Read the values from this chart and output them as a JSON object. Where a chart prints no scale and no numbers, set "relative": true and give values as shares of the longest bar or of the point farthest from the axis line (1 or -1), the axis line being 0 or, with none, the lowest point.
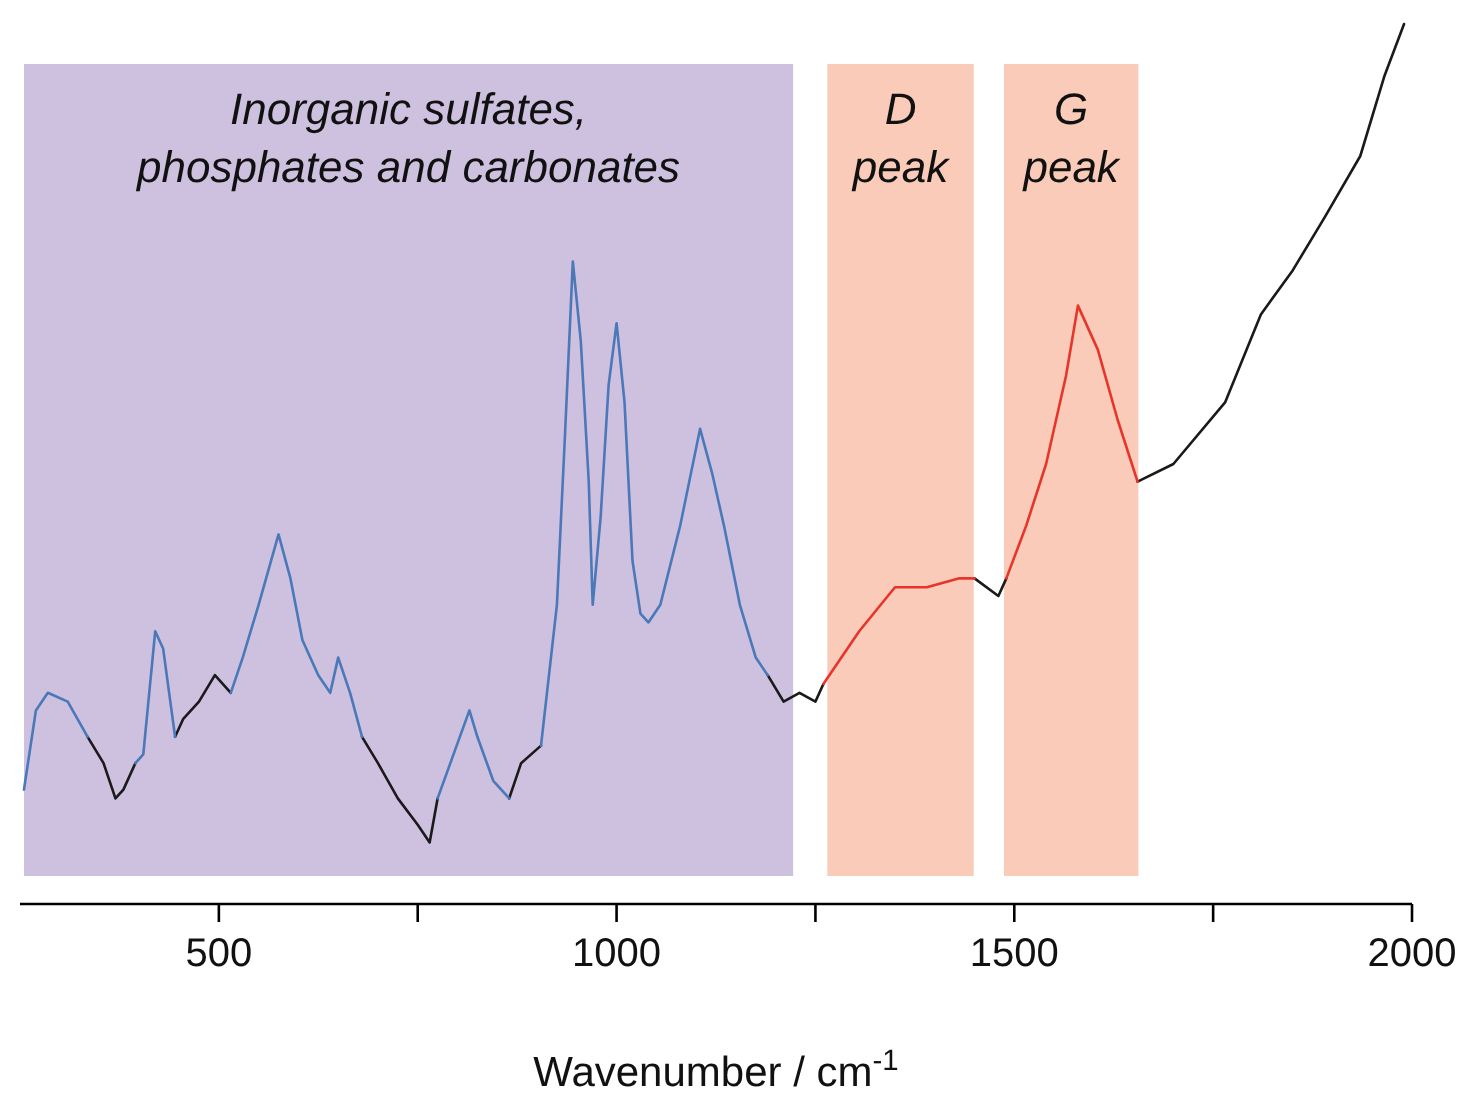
{
  "chart_data": {
    "type": "line",
    "relative": true,
    "xlabel": "Wavenumber / cm$^{-1}$",
    "xlim": [
      250,
      2000
    ],
    "xticks": [
      500,
      {
        "value": 750,
        "label": null
      },
      1000,
      {
        "value": 1250,
        "label": null
      },
      1500,
      {
        "value": 1750,
        "label": null
      },
      2000
    ],
    "bands": [
      {
        "axis": "x",
        "from": 255,
        "to": 1222,
        "label": "Inorganic sulfates, phosphates and carbonates",
        "color": "#cdc1df"
      },
      {
        "axis": "x",
        "from": 1265,
        "to": 1449,
        "label": "D peak",
        "color": "#f9cbb8"
      },
      {
        "axis": "x",
        "from": 1487,
        "to": 1656,
        "label": "G peak",
        "color": "#f9cbb8"
      }
    ],
    "x": [
      255,
      270,
      285,
      310,
      335,
      355,
      370,
      380,
      395,
      405,
      420,
      430,
      445,
      455,
      475,
      495,
      515,
      530,
      550,
      575,
      590,
      605,
      625,
      640,
      650,
      665,
      680,
      700,
      725,
      750,
      765,
      775,
      795,
      815,
      825,
      845,
      865,
      880,
      905,
      925,
      935,
      945,
      955,
      965,
      970,
      980,
      990,
      1000,
      1010,
      1020,
      1030,
      1040,
      1055,
      1080,
      1105,
      1120,
      1135,
      1155,
      1175,
      1190,
      1210,
      1230,
      1250,
      1260,
      1305,
      1350,
      1390,
      1430,
      1450,
      1480,
      1490,
      1515,
      1540,
      1565,
      1580,
      1605,
      1630,
      1655,
      1700,
      1765,
      1810,
      1850,
      1890,
      1935,
      1965,
      1990
    ],
    "series": [
      {
        "color": "#1a1a1a",
        "values": [
          null,
          null,
          null,
          null,
          0.19,
          0.16,
          0.12,
          0.13,
          0.16,
          null,
          null,
          null,
          0.19,
          0.21,
          0.23,
          0.26,
          0.24,
          null,
          null,
          null,
          null,
          null,
          null,
          null,
          null,
          null,
          0.19,
          0.16,
          0.12,
          0.09,
          0.07,
          0.12,
          null,
          null,
          null,
          null,
          0.12,
          0.16,
          0.18,
          null,
          null,
          null,
          null,
          null,
          null,
          null,
          null,
          null,
          null,
          null,
          null,
          null,
          null,
          null,
          null,
          null,
          null,
          null,
          null,
          0.26,
          0.23,
          0.24,
          0.23,
          0.25,
          null,
          null,
          null,
          null,
          0.37,
          0.35,
          0.37,
          null,
          null,
          null,
          null,
          null,
          null,
          0.48,
          0.5,
          0.57,
          0.67,
          0.72,
          0.78,
          0.85,
          0.94,
          1
        ]
      },
      {
        "color": "#4a78b8",
        "values": [
          0.13,
          0.22,
          0.24,
          0.23,
          0.19,
          null,
          null,
          null,
          0.16,
          0.17,
          0.31,
          0.29,
          0.19,
          null,
          null,
          null,
          0.24,
          0.28,
          0.34,
          0.42,
          0.37,
          0.3,
          0.26,
          0.24,
          0.28,
          0.24,
          0.19,
          null,
          null,
          null,
          null,
          0.12,
          0.17,
          0.22,
          0.19,
          0.14,
          0.12,
          null,
          0.18,
          0.34,
          0.53,
          0.73,
          0.64,
          0.48,
          0.34,
          0.44,
          0.59,
          0.66,
          0.57,
          0.39,
          0.33,
          0.32,
          0.34,
          0.43,
          0.54,
          0.49,
          0.43,
          0.34,
          0.28,
          0.26,
          null,
          null,
          null,
          null,
          null,
          null,
          null,
          null,
          null,
          null,
          null,
          null,
          null,
          null,
          null,
          null,
          null,
          null,
          null,
          null,
          null,
          null,
          null,
          null,
          null,
          null
        ]
      },
      {
        "color": "#e8352b",
        "values": [
          null,
          null,
          null,
          null,
          null,
          null,
          null,
          null,
          null,
          null,
          null,
          null,
          null,
          null,
          null,
          null,
          null,
          null,
          null,
          null,
          null,
          null,
          null,
          null,
          null,
          null,
          null,
          null,
          null,
          null,
          null,
          null,
          null,
          null,
          null,
          null,
          null,
          null,
          null,
          null,
          null,
          null,
          null,
          null,
          null,
          null,
          null,
          null,
          null,
          null,
          null,
          null,
          null,
          null,
          null,
          null,
          null,
          null,
          null,
          null,
          null,
          null,
          null,
          0.25,
          0.31,
          0.36,
          0.36,
          0.37,
          0.37,
          null,
          0.37,
          0.43,
          0.5,
          0.6,
          0.68,
          0.63,
          0.55,
          0.48,
          null,
          null,
          null,
          null,
          null,
          null,
          null,
          null
        ]
      }
    ]
  }
}
